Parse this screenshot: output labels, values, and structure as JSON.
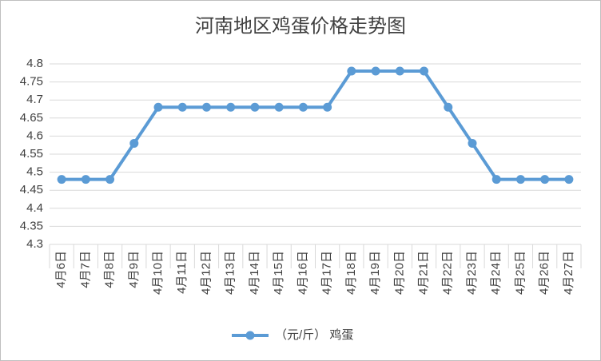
{
  "chart_data": {
    "type": "line",
    "title": "河南地区鸡蛋价格走势图",
    "categories": [
      "4月6日",
      "4月7日",
      "4月8日",
      "4月9日",
      "4月10日",
      "4月11日",
      "4月12日",
      "4月13日",
      "4月14日",
      "4月15日",
      "4月16日",
      "4月17日",
      "4月18日",
      "4月19日",
      "4月20日",
      "4月21日",
      "4月22日",
      "4月23日",
      "4月24日",
      "4月25日",
      "4月26日",
      "4月27日"
    ],
    "series": [
      {
        "name": "（元/斤） 鸡蛋",
        "color": "#5b9bd5",
        "values": [
          4.48,
          4.48,
          4.48,
          4.58,
          4.68,
          4.68,
          4.68,
          4.68,
          4.68,
          4.68,
          4.68,
          4.68,
          4.78,
          4.78,
          4.78,
          4.78,
          4.68,
          4.58,
          4.48,
          4.48,
          4.48,
          4.48
        ]
      }
    ],
    "ylim": [
      4.3,
      4.8
    ],
    "yticks": [
      4.3,
      4.35,
      4.4,
      4.45,
      4.5,
      4.55,
      4.6,
      4.65,
      4.7,
      4.75,
      4.8
    ],
    "grid": true,
    "legend": "bottom"
  }
}
